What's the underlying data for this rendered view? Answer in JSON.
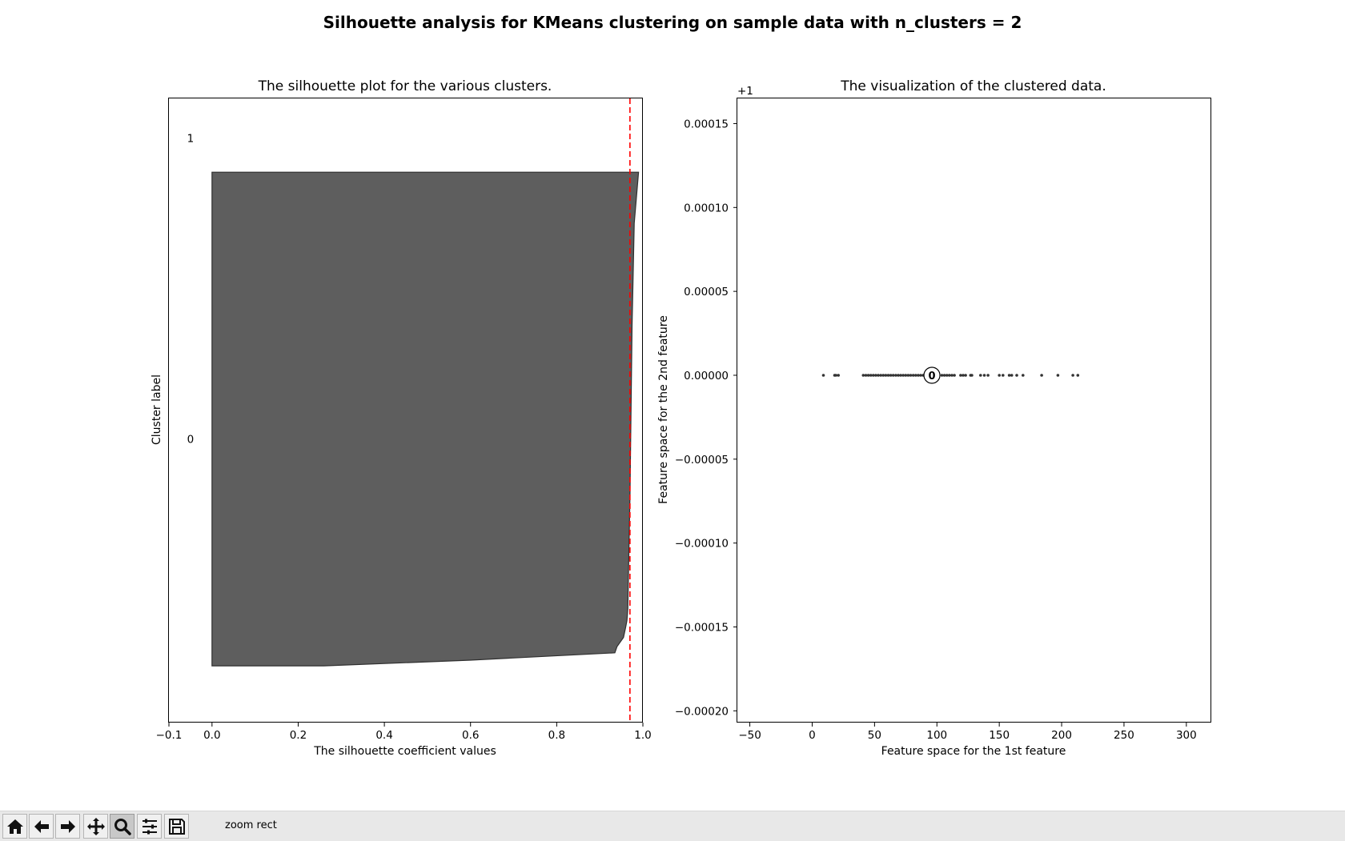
{
  "figure": {
    "suptitle": "Silhouette analysis for KMeans clustering on sample data with n_clusters = 2"
  },
  "chart_data": [
    {
      "type": "area",
      "title": "The silhouette plot for the various clusters.",
      "xlabel": "The silhouette coefficient values",
      "ylabel": "Cluster label",
      "xlim": [
        -0.1,
        1.0
      ],
      "xticks": [
        -0.1,
        0.0,
        0.2,
        0.4,
        0.6,
        0.8,
        1.0
      ],
      "xtick_labels": [
        "−0.1",
        "0.0",
        "0.2",
        "0.4",
        "0.6",
        "0.8",
        "1.0"
      ],
      "ylim": [
        0,
        110
      ],
      "cluster_labels": [
        {
          "label": "0",
          "y": 50
        },
        {
          "label": "1",
          "y": 103
        }
      ],
      "silhouette_profile": {
        "cluster": "0",
        "y_range": [
          10,
          97
        ],
        "color": "#5e5e5e",
        "edge": [
          {
            "y": 97.0,
            "x": 0.99
          },
          {
            "y": 88.0,
            "x": 0.98
          },
          {
            "y": 70.0,
            "x": 0.975
          },
          {
            "y": 40.0,
            "x": 0.97
          },
          {
            "y": 20.0,
            "x": 0.965
          },
          {
            "y": 18.0,
            "x": 0.963
          },
          {
            "y": 16.8,
            "x": 0.96
          },
          {
            "y": 15.0,
            "x": 0.955
          },
          {
            "y": 13.4,
            "x": 0.94
          },
          {
            "y": 12.3,
            "x": 0.935
          },
          {
            "y": 11.0,
            "x": 0.6
          },
          {
            "y": 10.0,
            "x": 0.26
          },
          {
            "y": 10.0,
            "x": 0.0
          }
        ]
      },
      "average_silhouette_line": {
        "x": 0.97,
        "color": "#ff0000",
        "style": "dashed"
      }
    },
    {
      "type": "scatter",
      "title": "The visualization of the clustered data.",
      "xlabel": "Feature space for the 1st feature",
      "ylabel": "Feature space for the 2nd feature",
      "xlim": [
        -60,
        320
      ],
      "xticks": [
        -50,
        0,
        50,
        100,
        150,
        200,
        250,
        300
      ],
      "xtick_labels": [
        "−50",
        "0",
        "50",
        "100",
        "150",
        "200",
        "250",
        "300"
      ],
      "ylim": [
        -0.000207,
        0.000165
      ],
      "yticks": [
        -0.0002,
        -0.00015,
        -0.0001,
        -5e-05,
        0,
        5e-05,
        0.0001,
        0.00015
      ],
      "ytick_labels": [
        "−0.00020",
        "−0.00015",
        "−0.00010",
        "−0.00005",
        "0.00000",
        "0.00005",
        "0.00010",
        "0.00015"
      ],
      "y_offset_text": "+1",
      "point_color": "#333333",
      "points": [
        {
          "x": 9,
          "y": 0
        },
        {
          "x": 18,
          "y": 0
        },
        {
          "x": 19,
          "y": 0
        },
        {
          "x": 21,
          "y": 0
        },
        {
          "x": 41,
          "y": 0
        },
        {
          "x": 43,
          "y": 0
        },
        {
          "x": 45,
          "y": 0
        },
        {
          "x": 47,
          "y": 0
        },
        {
          "x": 49,
          "y": 0
        },
        {
          "x": 51,
          "y": 0
        },
        {
          "x": 53,
          "y": 0
        },
        {
          "x": 55,
          "y": 0
        },
        {
          "x": 57,
          "y": 0
        },
        {
          "x": 59,
          "y": 0
        },
        {
          "x": 61,
          "y": 0
        },
        {
          "x": 63,
          "y": 0
        },
        {
          "x": 65,
          "y": 0
        },
        {
          "x": 67,
          "y": 0
        },
        {
          "x": 69,
          "y": 0
        },
        {
          "x": 71,
          "y": 0
        },
        {
          "x": 73,
          "y": 0
        },
        {
          "x": 75,
          "y": 0
        },
        {
          "x": 77,
          "y": 0
        },
        {
          "x": 79,
          "y": 0
        },
        {
          "x": 81,
          "y": 0
        },
        {
          "x": 83,
          "y": 0
        },
        {
          "x": 85,
          "y": 0
        },
        {
          "x": 87,
          "y": 0
        },
        {
          "x": 89,
          "y": 0
        },
        {
          "x": 104,
          "y": 0
        },
        {
          "x": 106,
          "y": 0
        },
        {
          "x": 108,
          "y": 0
        },
        {
          "x": 110,
          "y": 0
        },
        {
          "x": 112,
          "y": 0
        },
        {
          "x": 114,
          "y": 0
        },
        {
          "x": 119,
          "y": 0
        },
        {
          "x": 121,
          "y": 0
        },
        {
          "x": 123,
          "y": 0
        },
        {
          "x": 127,
          "y": 0
        },
        {
          "x": 128,
          "y": 0
        },
        {
          "x": 135,
          "y": 0
        },
        {
          "x": 138,
          "y": 0
        },
        {
          "x": 141,
          "y": 0
        },
        {
          "x": 150,
          "y": 0
        },
        {
          "x": 153,
          "y": 0
        },
        {
          "x": 158,
          "y": 0
        },
        {
          "x": 160,
          "y": 0
        },
        {
          "x": 164,
          "y": 0
        },
        {
          "x": 169,
          "y": 0
        },
        {
          "x": 184,
          "y": 0
        },
        {
          "x": 197,
          "y": 0
        },
        {
          "x": 209,
          "y": 0
        },
        {
          "x": 213,
          "y": 0
        }
      ],
      "centers": [
        {
          "label": "0",
          "x": 96,
          "y": 0
        }
      ]
    }
  ],
  "toolbar": {
    "buttons": [
      {
        "name": "home-button",
        "icon": "home-icon",
        "active": false
      },
      {
        "name": "back-button",
        "icon": "arrow-left-icon",
        "active": false
      },
      {
        "name": "forward-button",
        "icon": "arrow-right-icon",
        "active": false
      },
      {
        "name": "pan-button",
        "icon": "move-icon",
        "active": false
      },
      {
        "name": "zoom-button",
        "icon": "zoom-icon",
        "active": true
      },
      {
        "name": "configure-subplots-button",
        "icon": "sliders-icon",
        "active": false
      },
      {
        "name": "save-button",
        "icon": "save-icon",
        "active": false
      }
    ],
    "message": "zoom rect"
  }
}
